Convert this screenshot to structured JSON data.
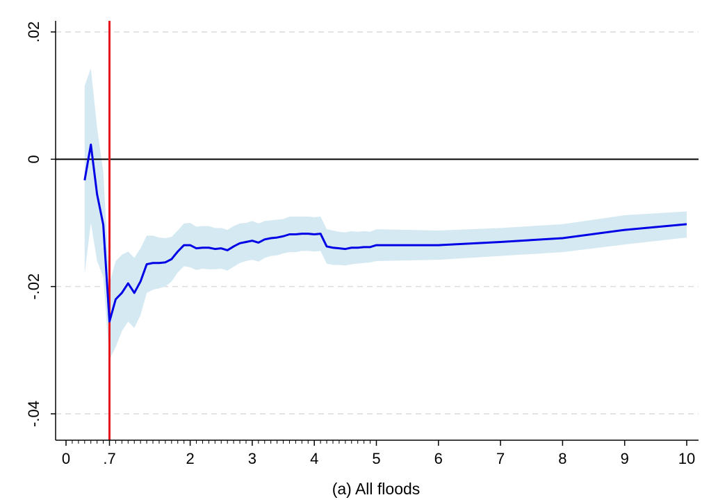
{
  "chart_data": {
    "type": "line",
    "title": "",
    "xlabel": "(a) All floods",
    "ylabel": "",
    "xlim": [
      0,
      10
    ],
    "ylim": [
      -0.04,
      0.02
    ],
    "grid": "horizontal dashed",
    "legend": "none",
    "x_major_ticks": [
      {
        "value": 0,
        "label": "0"
      },
      {
        "value": 0.7,
        "label": ".7"
      },
      {
        "value": 2,
        "label": "2"
      },
      {
        "value": 3,
        "label": "3"
      },
      {
        "value": 4,
        "label": "4"
      },
      {
        "value": 5,
        "label": "5"
      },
      {
        "value": 6,
        "label": "6"
      },
      {
        "value": 7,
        "label": "7"
      },
      {
        "value": 8,
        "label": "8"
      },
      {
        "value": 9,
        "label": "9"
      },
      {
        "value": 10,
        "label": "10"
      }
    ],
    "y_ticks": [
      {
        "value": 0.02,
        "label": ".02"
      },
      {
        "value": 0,
        "label": "0"
      },
      {
        "value": -0.02,
        "label": "-.02"
      },
      {
        "value": -0.04,
        "label": "-.04"
      }
    ],
    "reference_lines": {
      "horizontal_zero": 0,
      "vertical_threshold": 0.7,
      "vertical_label": ".7"
    },
    "series": [
      {
        "x": [
          0.3,
          0.4,
          0.5,
          0.6,
          0.7,
          0.8,
          0.9,
          1.0,
          1.1,
          1.2,
          1.3,
          1.4,
          1.5,
          1.6,
          1.7,
          1.8,
          1.9,
          2.0,
          2.1,
          2.2,
          2.3,
          2.4,
          2.5,
          2.6,
          2.7,
          2.8,
          2.9,
          3.0,
          3.1,
          3.2,
          3.3,
          3.4,
          3.5,
          3.6,
          3.7,
          3.8,
          3.9,
          4.0,
          4.1,
          4.2,
          4.3,
          4.4,
          4.5,
          4.6,
          4.7,
          4.8,
          4.9,
          5.0,
          6.0,
          7.0,
          8.0,
          9.0,
          10.0
        ],
        "y": [
          -0.0033,
          0.0023,
          -0.0055,
          -0.0103,
          -0.0255,
          -0.022,
          -0.021,
          -0.0195,
          -0.021,
          -0.0192,
          -0.0165,
          -0.0163,
          -0.0163,
          -0.0162,
          -0.0157,
          -0.0145,
          -0.0135,
          -0.0135,
          -0.014,
          -0.0139,
          -0.0139,
          -0.0141,
          -0.014,
          -0.0143,
          -0.0137,
          -0.0132,
          -0.013,
          -0.0128,
          -0.0131,
          -0.0126,
          -0.0124,
          -0.0123,
          -0.0121,
          -0.0118,
          -0.0118,
          -0.0117,
          -0.0117,
          -0.0118,
          -0.0117,
          -0.0137,
          -0.0139,
          -0.014,
          -0.0141,
          -0.0139,
          -0.0139,
          -0.0138,
          -0.0138,
          -0.0135,
          -0.0135,
          -0.013,
          -0.0124,
          -0.0111,
          -0.0102
        ],
        "ci_lower": [
          -0.018,
          -0.01,
          -0.016,
          -0.0185,
          -0.0315,
          -0.0295,
          -0.027,
          -0.0255,
          -0.0265,
          -0.0245,
          -0.021,
          -0.0205,
          -0.0203,
          -0.02,
          -0.0192,
          -0.0178,
          -0.0168,
          -0.017,
          -0.0174,
          -0.0172,
          -0.0173,
          -0.0173,
          -0.0172,
          -0.0175,
          -0.0169,
          -0.0163,
          -0.016,
          -0.0158,
          -0.0161,
          -0.0155,
          -0.0152,
          -0.0151,
          -0.0148,
          -0.0146,
          -0.0146,
          -0.0144,
          -0.0144,
          -0.0145,
          -0.0144,
          -0.0164,
          -0.0166,
          -0.0166,
          -0.0167,
          -0.0165,
          -0.0164,
          -0.0163,
          -0.0162,
          -0.016,
          -0.0158,
          -0.0152,
          -0.0146,
          -0.0134,
          -0.0123
        ],
        "ci_upper": [
          0.0115,
          0.0143,
          0.005,
          -0.002,
          -0.0195,
          -0.016,
          -0.015,
          -0.0145,
          -0.0155,
          -0.014,
          -0.012,
          -0.012,
          -0.0123,
          -0.0124,
          -0.0122,
          -0.0112,
          -0.0101,
          -0.01,
          -0.0106,
          -0.0105,
          -0.0105,
          -0.0108,
          -0.0108,
          -0.0111,
          -0.0105,
          -0.0101,
          -0.01,
          -0.0097,
          -0.0101,
          -0.0097,
          -0.0096,
          -0.0095,
          -0.0094,
          -0.009,
          -0.009,
          -0.009,
          -0.009,
          -0.0091,
          -0.009,
          -0.011,
          -0.0112,
          -0.0114,
          -0.0115,
          -0.0113,
          -0.0114,
          -0.0113,
          -0.0114,
          -0.011,
          -0.0112,
          -0.0108,
          -0.0102,
          -0.0088,
          -0.0082
        ]
      }
    ]
  },
  "colors": {
    "line": "#0000e6",
    "band": "#d5e9f2",
    "threshold": "#e8141b",
    "threshold_label": "#e8141b",
    "zero_line": "#000000",
    "grid": "#dcdcdc",
    "axis": "#000000"
  }
}
